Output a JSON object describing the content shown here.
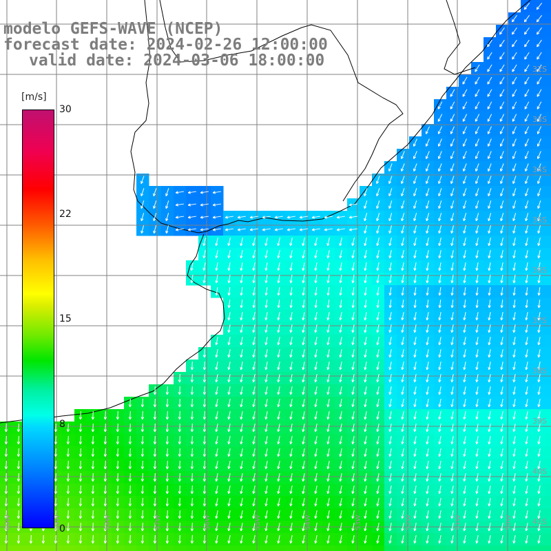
{
  "header": {
    "model": "modelo GEFS-WAVE (NCEP)",
    "forecast": "forecast date: 2024-02-26 12:00:00",
    "valid": "valid date: 2024-03-06 18:00:00"
  },
  "colorbar": {
    "unit": "[m/s]",
    "ticks": [
      "30",
      "22",
      "15",
      "8",
      "0"
    ],
    "colors": [
      "#0000ff",
      "#0078ff",
      "#00d8ff",
      "#00ffe8",
      "#00e600",
      "#d8ee00",
      "#ffff00",
      "#ff6000",
      "#ff0000",
      "#c01070"
    ]
  },
  "map": {
    "right_lat_labels": [
      "32S",
      "33S",
      "34S",
      "35S",
      "36S",
      "37S",
      "38S",
      "39S",
      "40S",
      "41S"
    ],
    "bottom_lon_labels": [
      "60W",
      "59W",
      "58W",
      "57W",
      "56W",
      "55W",
      "54W",
      "53W",
      "52W",
      "51W",
      "50W"
    ],
    "grid_color": "#808080",
    "coast_color": "#000000",
    "arrow_color": "#ffffff",
    "land_color": "#ffffff"
  }
}
